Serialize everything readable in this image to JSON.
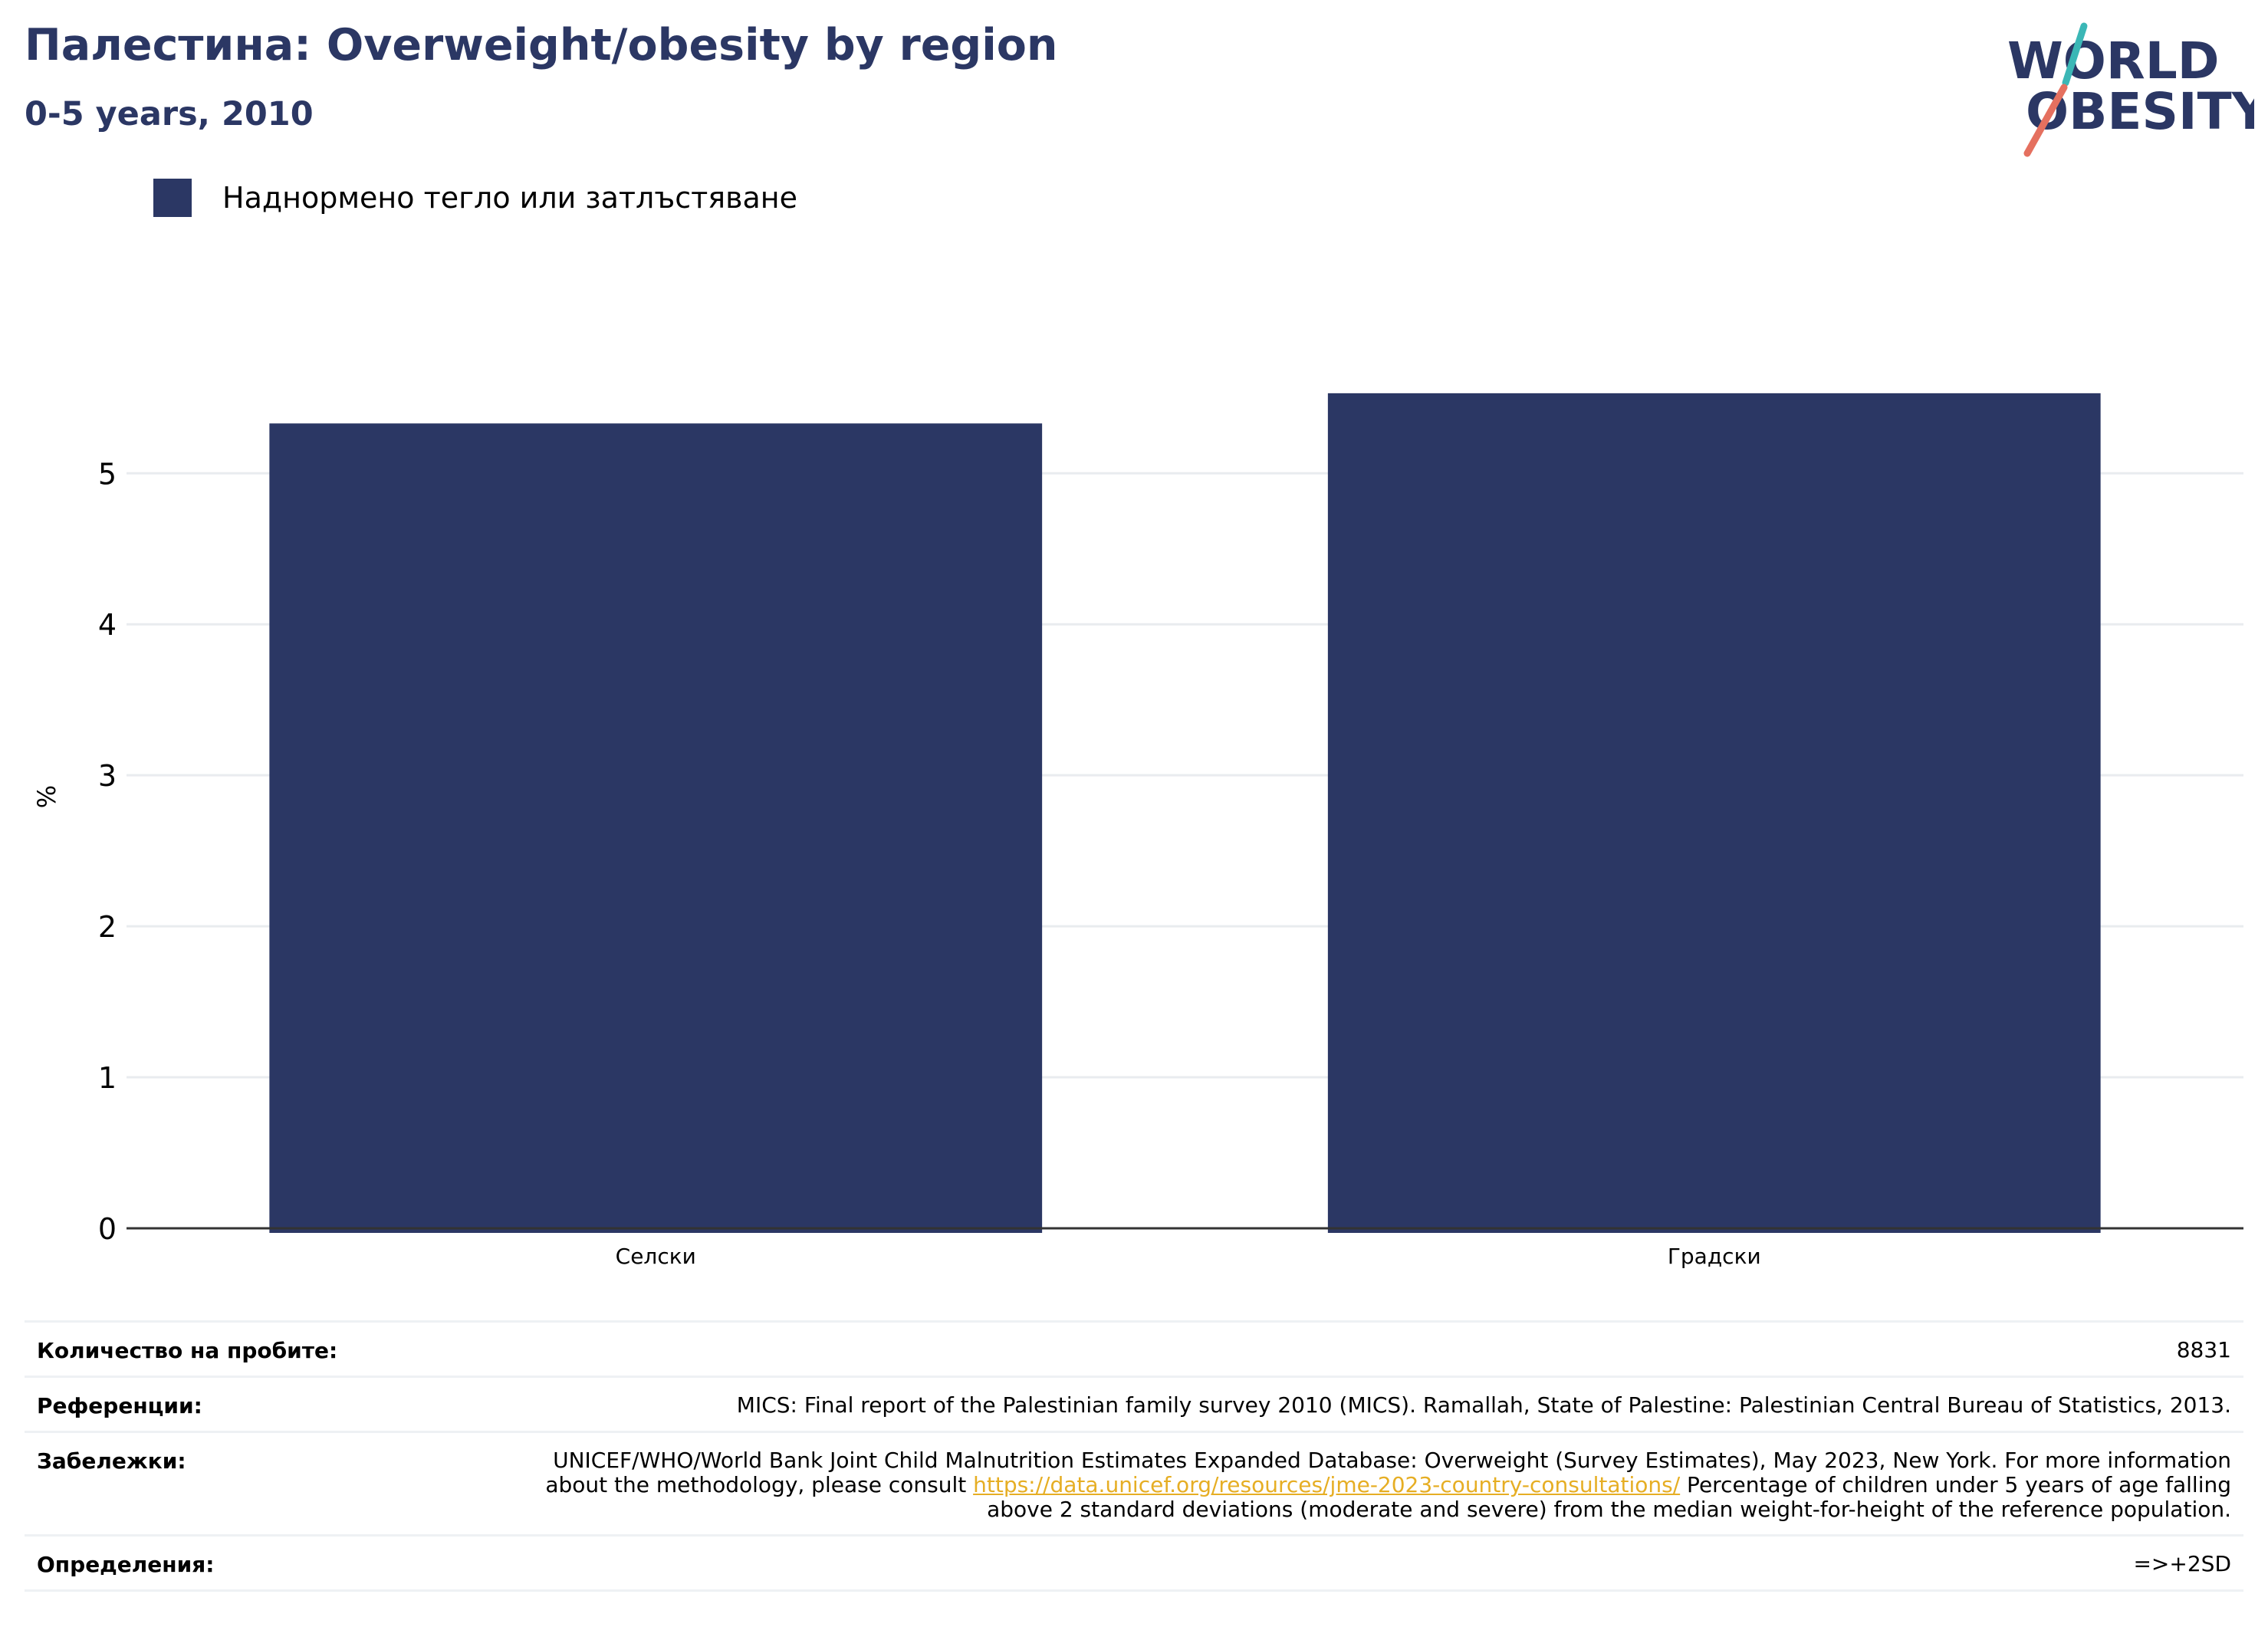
{
  "header": {
    "title": "Палестина: Overweight/obesity by region",
    "subtitle": "0-5 years, 2010"
  },
  "logo": {
    "line1": "WORLD",
    "line2": "OBESITY",
    "colors": {
      "text": "#2b3764",
      "slash_top": "#3bb7b6",
      "slash_bottom": "#e5705f"
    }
  },
  "colors": {
    "bar": "#2b3764",
    "grid": "#e9ecef",
    "axis": "#333333"
  },
  "chart_data": {
    "type": "bar",
    "title": "Палестина: Overweight/obesity by region",
    "subtitle": "0-5 years, 2010",
    "categories": [
      "Селски",
      "Градски"
    ],
    "series": [
      {
        "name": "Наднормено тегло или затлъстяване",
        "values": [
          5.33,
          5.53
        ]
      }
    ],
    "ylabel": "%",
    "xlabel": "",
    "ylim": [
      0,
      5.9
    ],
    "yticks": [
      0,
      1,
      2,
      3,
      4,
      5
    ],
    "grid": true,
    "legend_position": "top-left"
  },
  "meta": {
    "sample_size_label": "Количество на пробите:",
    "sample_size_value": "8831",
    "references_label": "Референции:",
    "references_value": "MICS: Final report of the Palestinian family survey 2010 (MICS). Ramallah, State of Palestine: Palestinian Central Bureau of Statistics, 2013.",
    "notes_label": "Забележки:",
    "notes_before": "UNICEF/WHO/World Bank Joint Child Malnutrition Estimates Expanded Database: Overweight (Survey Estimates), May 2023, New York. For more information about the methodology, please consult ",
    "notes_link": "https://data.unicef.org/resources/jme-2023-country-consultations/",
    "notes_after": " Percentage of children under 5 years of age falling above 2 standard deviations (moderate and severe) from the median weight-for-height of the reference population.",
    "definitions_label": "Определения:",
    "definitions_value": "=>+2SD"
  }
}
